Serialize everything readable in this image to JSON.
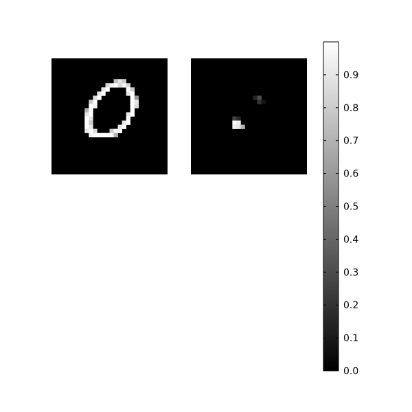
{
  "chart_data": [
    {
      "type": "heatmap",
      "colormap": "gray",
      "vmin": 0,
      "vmax": 1,
      "grid_rows": 28,
      "grid_cols": 28,
      "pixels": [
        {
          "row": 5,
          "col": 15,
          "v": 0.75
        },
        {
          "row": 5,
          "col": 16,
          "v": 0.9
        },
        {
          "row": 5,
          "col": 17,
          "v": 0.8
        },
        {
          "row": 6,
          "col": 13,
          "v": 0.85
        },
        {
          "row": 6,
          "col": 14,
          "v": 0.95
        },
        {
          "row": 6,
          "col": 15,
          "v": 1
        },
        {
          "row": 6,
          "col": 16,
          "v": 0.85
        },
        {
          "row": 6,
          "col": 17,
          "v": 0.95
        },
        {
          "row": 6,
          "col": 18,
          "v": 0.85
        },
        {
          "row": 7,
          "col": 12,
          "v": 0.9
        },
        {
          "row": 7,
          "col": 13,
          "v": 1
        },
        {
          "row": 7,
          "col": 18,
          "v": 1
        },
        {
          "row": 7,
          "col": 19,
          "v": 0.8
        },
        {
          "row": 8,
          "col": 11,
          "v": 0.9
        },
        {
          "row": 8,
          "col": 12,
          "v": 1
        },
        {
          "row": 8,
          "col": 18,
          "v": 0.9
        },
        {
          "row": 8,
          "col": 19,
          "v": 1
        },
        {
          "row": 9,
          "col": 10,
          "v": 0.85
        },
        {
          "row": 9,
          "col": 11,
          "v": 1
        },
        {
          "row": 9,
          "col": 19,
          "v": 1
        },
        {
          "row": 9,
          "col": 20,
          "v": 0.6
        },
        {
          "row": 10,
          "col": 9,
          "v": 0.8
        },
        {
          "row": 10,
          "col": 10,
          "v": 1
        },
        {
          "row": 10,
          "col": 19,
          "v": 1
        },
        {
          "row": 10,
          "col": 20,
          "v": 0.9
        },
        {
          "row": 11,
          "col": 9,
          "v": 1
        },
        {
          "row": 11,
          "col": 10,
          "v": 0.95
        },
        {
          "row": 11,
          "col": 19,
          "v": 1
        },
        {
          "row": 11,
          "col": 20,
          "v": 0.85
        },
        {
          "row": 12,
          "col": 8,
          "v": 0.7
        },
        {
          "row": 12,
          "col": 9,
          "v": 1
        },
        {
          "row": 12,
          "col": 19,
          "v": 1
        },
        {
          "row": 13,
          "col": 8,
          "v": 0.9
        },
        {
          "row": 13,
          "col": 9,
          "v": 1
        },
        {
          "row": 13,
          "col": 18,
          "v": 0.9
        },
        {
          "row": 13,
          "col": 19,
          "v": 1
        },
        {
          "row": 14,
          "col": 8,
          "v": 1
        },
        {
          "row": 14,
          "col": 9,
          "v": 0.9
        },
        {
          "row": 14,
          "col": 18,
          "v": 1
        },
        {
          "row": 15,
          "col": 8,
          "v": 1
        },
        {
          "row": 15,
          "col": 9,
          "v": 0.8
        },
        {
          "row": 15,
          "col": 17,
          "v": 0.9
        },
        {
          "row": 15,
          "col": 18,
          "v": 1
        },
        {
          "row": 16,
          "col": 8,
          "v": 1
        },
        {
          "row": 16,
          "col": 9,
          "v": 0.9
        },
        {
          "row": 16,
          "col": 16,
          "v": 0.9
        },
        {
          "row": 16,
          "col": 17,
          "v": 1
        },
        {
          "row": 17,
          "col": 8,
          "v": 0.9
        },
        {
          "row": 17,
          "col": 9,
          "v": 1
        },
        {
          "row": 17,
          "col": 10,
          "v": 0.85
        },
        {
          "row": 17,
          "col": 14,
          "v": 0.8
        },
        {
          "row": 17,
          "col": 15,
          "v": 1
        },
        {
          "row": 17,
          "col": 16,
          "v": 1
        },
        {
          "row": 18,
          "col": 9,
          "v": 0.95
        },
        {
          "row": 18,
          "col": 10,
          "v": 1
        },
        {
          "row": 18,
          "col": 11,
          "v": 1
        },
        {
          "row": 18,
          "col": 12,
          "v": 1
        },
        {
          "row": 18,
          "col": 13,
          "v": 1
        },
        {
          "row": 18,
          "col": 14,
          "v": 1
        },
        {
          "row": 18,
          "col": 15,
          "v": 0.7
        }
      ]
    },
    {
      "type": "heatmap",
      "colormap": "gray",
      "vmin": 0,
      "vmax": 1,
      "grid_rows": 28,
      "grid_cols": 28,
      "pixels": [
        {
          "row": 9,
          "col": 15,
          "v": 0.15
        },
        {
          "row": 9,
          "col": 16,
          "v": 0.3
        },
        {
          "row": 10,
          "col": 16,
          "v": 0.2
        },
        {
          "row": 10,
          "col": 17,
          "v": 0.08
        },
        {
          "row": 14,
          "col": 10,
          "v": 0.25
        },
        {
          "row": 14,
          "col": 11,
          "v": 0.15
        },
        {
          "row": 15,
          "col": 10,
          "v": 1
        },
        {
          "row": 15,
          "col": 11,
          "v": 0.95
        },
        {
          "row": 16,
          "col": 10,
          "v": 0.95
        },
        {
          "row": 16,
          "col": 11,
          "v": 0.9
        },
        {
          "row": 16,
          "col": 12,
          "v": 0.7
        }
      ]
    }
  ],
  "colorbar": {
    "vmin": 0,
    "vmax": 1,
    "tick_values": [
      0,
      0.1,
      0.2,
      0.3,
      0.4,
      0.5,
      0.6,
      0.7,
      0.8,
      0.9
    ],
    "tick_labels": [
      "0.0",
      "0.1",
      "0.2",
      "0.3",
      "0.4",
      "0.5",
      "0.6",
      "0.7",
      "0.8",
      "0.9"
    ]
  }
}
